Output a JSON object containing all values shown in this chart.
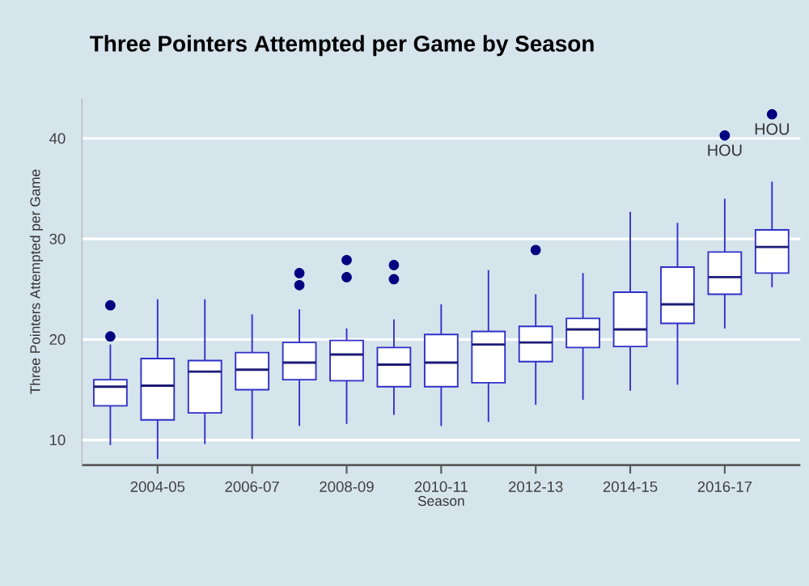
{
  "chart_data": {
    "type": "box",
    "title": "Three Pointers Attempted per Game by Season",
    "xlabel": "Season",
    "ylabel": "Three Pointers Attempted per Game",
    "categories": [
      null,
      "2004-05",
      null,
      "2006-07",
      null,
      "2008-09",
      null,
      "2010-11",
      null,
      "2012-13",
      null,
      "2014-15",
      null,
      "2016-17",
      null
    ],
    "ylim": [
      7.5,
      44
    ],
    "yticks": [
      10,
      20,
      30,
      40
    ],
    "grid": "y",
    "series": [
      {
        "color": "#2f2fc8",
        "boxes": [
          {
            "low": 9.5,
            "q1": 13.4,
            "median": 15.3,
            "q3": 16.0,
            "high": 19.5,
            "outliers": [
              20.3,
              23.4
            ]
          },
          {
            "low": 8.1,
            "q1": 12.0,
            "median": 15.4,
            "q3": 18.1,
            "high": 24.0
          },
          {
            "low": 9.6,
            "q1": 12.7,
            "median": 16.8,
            "q3": 17.9,
            "high": 24.0
          },
          {
            "low": 10.1,
            "q1": 15.0,
            "median": 17.0,
            "q3": 18.7,
            "high": 22.5
          },
          {
            "low": 11.4,
            "q1": 16.0,
            "median": 17.7,
            "q3": 19.7,
            "high": 23.0,
            "outliers": [
              25.4,
              26.6
            ]
          },
          {
            "low": 11.6,
            "q1": 15.9,
            "median": 18.5,
            "q3": 19.9,
            "high": 21.1,
            "outliers": [
              26.2,
              27.9
            ]
          },
          {
            "low": 12.5,
            "q1": 15.3,
            "median": 17.5,
            "q3": 19.2,
            "high": 22.0,
            "outliers": [
              26.0,
              27.4
            ]
          },
          {
            "low": 11.4,
            "q1": 15.3,
            "median": 17.7,
            "q3": 20.5,
            "high": 23.5
          },
          {
            "low": 11.8,
            "q1": 15.7,
            "median": 19.5,
            "q3": 20.8,
            "high": 26.9
          },
          {
            "low": 13.5,
            "q1": 17.8,
            "median": 19.7,
            "q3": 21.3,
            "high": 24.5,
            "outliers": [
              28.9
            ]
          },
          {
            "low": 14.0,
            "q1": 19.2,
            "median": 21.0,
            "q3": 22.1,
            "high": 26.6
          },
          {
            "low": 14.9,
            "q1": 19.3,
            "median": 21.0,
            "q3": 24.7,
            "high": 32.7
          },
          {
            "low": 15.5,
            "q1": 21.6,
            "median": 23.5,
            "q3": 27.2,
            "high": 31.6
          },
          {
            "low": 21.1,
            "q1": 24.5,
            "median": 26.2,
            "q3": 28.7,
            "high": 34.0,
            "outliers": [
              40.3
            ]
          },
          {
            "low": 25.2,
            "q1": 26.6,
            "median": 29.2,
            "q3": 30.9,
            "high": 35.7,
            "outliers": [
              42.4
            ]
          }
        ]
      }
    ],
    "annotations": [
      "HOU",
      "HOU"
    ]
  }
}
